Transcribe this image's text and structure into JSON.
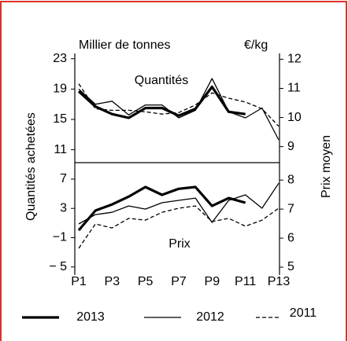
{
  "chart_data": [
    {
      "type": "line",
      "y_label": "Quantités achetées",
      "y_unit": "Millier de tonnes",
      "y2_unit": "€/kg",
      "annotation": "Quantités",
      "ylim": [
        9.3,
        23.7
      ],
      "yticks": [
        11,
        15,
        19,
        23
      ],
      "y2lim": [
        8.45,
        12.2
      ],
      "y2ticks": [
        9,
        10,
        11,
        12
      ],
      "series": [
        {
          "name": "2013",
          "color": "#000000",
          "line_width": 3.2,
          "dash": "none",
          "axis": "y",
          "values": [
            18.7,
            16.7,
            15.7,
            15.2,
            16.5,
            16.5,
            15.5,
            16.4,
            19.3,
            16.0,
            15.7,
            null,
            null
          ]
        },
        {
          "name": "2012",
          "color": "#000000",
          "line_width": 1.3,
          "dash": "none",
          "axis": "y",
          "values": [
            19.0,
            17.0,
            17.4,
            15.6,
            16.9,
            16.9,
            15.2,
            16.2,
            20.4,
            16.0,
            15.2,
            16.5,
            12.3
          ]
        },
        {
          "name": "2011",
          "color": "#000000",
          "line_width": 1.3,
          "dash": "5 3",
          "axis": "y",
          "values": [
            19.7,
            16.4,
            16.2,
            16.2,
            16.0,
            15.7,
            15.9,
            16.9,
            18.5,
            17.8,
            17.3,
            16.4,
            14.1
          ]
        }
      ]
    },
    {
      "type": "line",
      "y2_label": "Prix moyen",
      "annotation": "Prix",
      "categories": [
        "P1",
        null,
        "P3",
        null,
        "P5",
        null,
        "P7",
        null,
        "P9",
        null,
        "P11",
        null,
        "P13"
      ],
      "ylim": [
        -6.1,
        9.25
      ],
      "yticks": [
        {
          "value": -5,
          "label": "− 5"
        },
        {
          "value": -1,
          "label": "−1"
        },
        3,
        7
      ],
      "y2lim": [
        4.73,
        8.6
      ],
      "y2ticks": [
        5,
        6,
        7,
        8
      ],
      "series": [
        {
          "color": "#000000",
          "line_width": 3.2,
          "dash": "none",
          "axis": "y2",
          "values": [
            6.27,
            6.95,
            7.16,
            7.43,
            7.76,
            7.49,
            7.7,
            7.76,
            7.11,
            7.38,
            7.22,
            null,
            null
          ]
        },
        {
          "color": "#000000",
          "line_width": 1.3,
          "dash": "none",
          "axis": "y2",
          "values": [
            6.49,
            6.81,
            6.89,
            7.11,
            7.0,
            7.22,
            7.3,
            7.38,
            6.54,
            7.3,
            7.49,
            7.03,
            7.89
          ]
        },
        {
          "color": "#000000",
          "line_width": 1.3,
          "dash": "5 3",
          "axis": "y2",
          "values": [
            5.65,
            6.49,
            6.35,
            6.68,
            6.62,
            6.89,
            7.03,
            7.11,
            6.57,
            6.68,
            6.41,
            6.62,
            7.03
          ]
        }
      ]
    }
  ]
}
